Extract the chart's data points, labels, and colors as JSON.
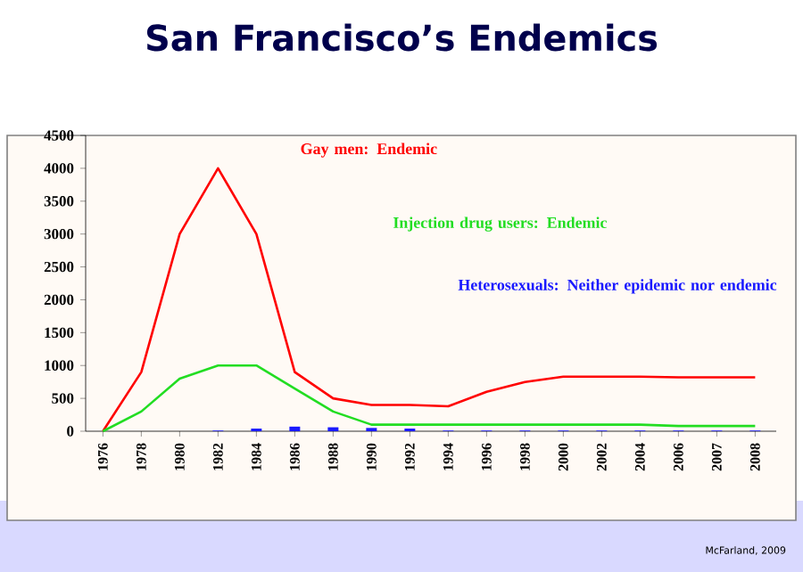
{
  "chart_data": {
    "type": "line",
    "title": "San Francisco’s Endemics",
    "categories": [
      "1976",
      "1978",
      "1980",
      "1982",
      "1984",
      "1986",
      "1988",
      "1990",
      "1992",
      "1994",
      "1996",
      "1998",
      "2000",
      "2002",
      "2004",
      "2006",
      "2007",
      "2008"
    ],
    "series": [
      {
        "name": "Gay men: Endemic",
        "color": "#ff0000",
        "values": [
          0,
          900,
          3000,
          4000,
          3000,
          900,
          500,
          400,
          400,
          380,
          600,
          750,
          830,
          830,
          830,
          820,
          820,
          820
        ]
      },
      {
        "name": "Injection drug users: Endemic",
        "color": "#22dd22",
        "values": [
          0,
          300,
          800,
          1000,
          1000,
          650,
          300,
          100,
          100,
          100,
          100,
          100,
          100,
          100,
          100,
          80,
          80,
          80
        ]
      },
      {
        "name": "Heterosexuals: Neither epidemic nor endemic",
        "type": "bar",
        "color": "#1a1aff",
        "values": [
          0,
          0,
          0,
          10,
          40,
          70,
          60,
          50,
          40,
          10,
          10,
          10,
          10,
          10,
          10,
          10,
          10,
          10
        ]
      }
    ],
    "ylim": [
      0,
      4500
    ],
    "yticks": [
      0,
      500,
      1000,
      1500,
      2000,
      2500,
      3000,
      3500,
      4000,
      4500
    ],
    "grid": false,
    "annotations": [
      "McFarland, 2009"
    ]
  }
}
